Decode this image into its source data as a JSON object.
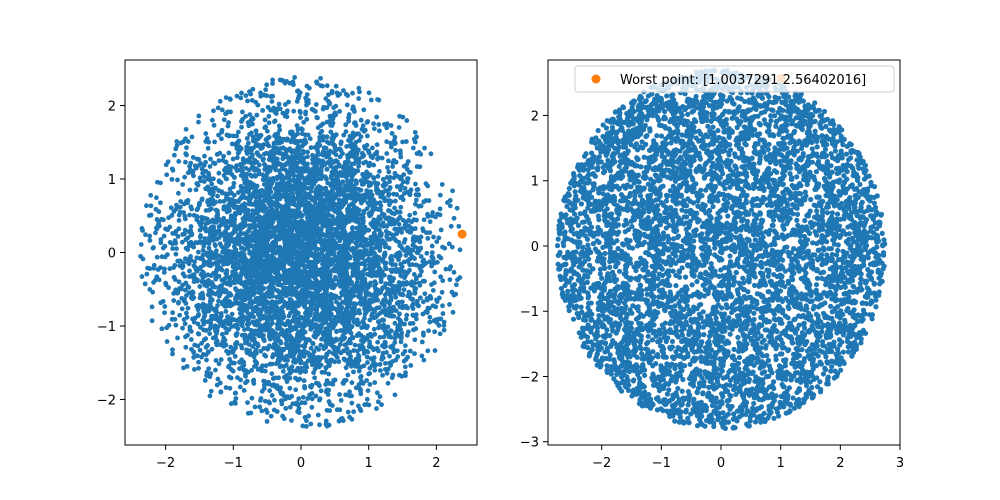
{
  "colors": {
    "series_blue": "#1f77b4",
    "highlight_orange": "#ff7f0e",
    "axes": "#000000",
    "background": "#ffffff"
  },
  "chart_data": [
    {
      "type": "scatter",
      "title": "",
      "xlabel": "",
      "ylabel": "",
      "xlim": [
        -2.6,
        2.6
      ],
      "ylim": [
        -2.62,
        2.62
      ],
      "xticks": [
        -2,
        -1,
        0,
        1,
        2
      ],
      "yticks": [
        -2,
        -1,
        0,
        1,
        2
      ],
      "xtick_labels": [
        "−2",
        "−1",
        "0",
        "1",
        "2"
      ],
      "ytick_labels": [
        "−2",
        "−1",
        "0",
        "1",
        "2"
      ],
      "grid": false,
      "legend": "none",
      "series": [
        {
          "role": "main",
          "color": "#1f77b4",
          "distribution": "disc",
          "center": [
            0.0,
            0.0
          ],
          "radius": 2.4,
          "points": 6000,
          "density": "dense core, sparser toward edge"
        },
        {
          "role": "highlight",
          "color": "#ff7f0e",
          "points_xy": [
            [
              2.38,
              0.25
            ]
          ]
        }
      ]
    },
    {
      "type": "scatter",
      "title": "",
      "xlabel": "",
      "ylabel": "",
      "xlim": [
        -2.9,
        3.0
      ],
      "ylim": [
        -3.05,
        2.85
      ],
      "xticks": [
        -2,
        -1,
        0,
        1,
        2,
        3
      ],
      "yticks": [
        -3,
        -2,
        -1,
        0,
        1,
        2
      ],
      "xtick_labels": [
        "−2",
        "−1",
        "0",
        "1",
        "2",
        "3"
      ],
      "ytick_labels": [
        "−3",
        "−2",
        "−1",
        "0",
        "1",
        "2"
      ],
      "grid": false,
      "legend": "top-right",
      "series": [
        {
          "role": "main",
          "color": "#1f77b4",
          "distribution": "disc",
          "center": [
            0.0,
            -0.05
          ],
          "radius": 2.75,
          "points": 6000,
          "density": "uniform"
        },
        {
          "role": "highlight",
          "name": "Worst point: [1.0037291  2.56402016]",
          "color": "#ff7f0e",
          "points_xy": [
            [
              1.0037291,
              2.56402016
            ]
          ]
        }
      ]
    }
  ]
}
